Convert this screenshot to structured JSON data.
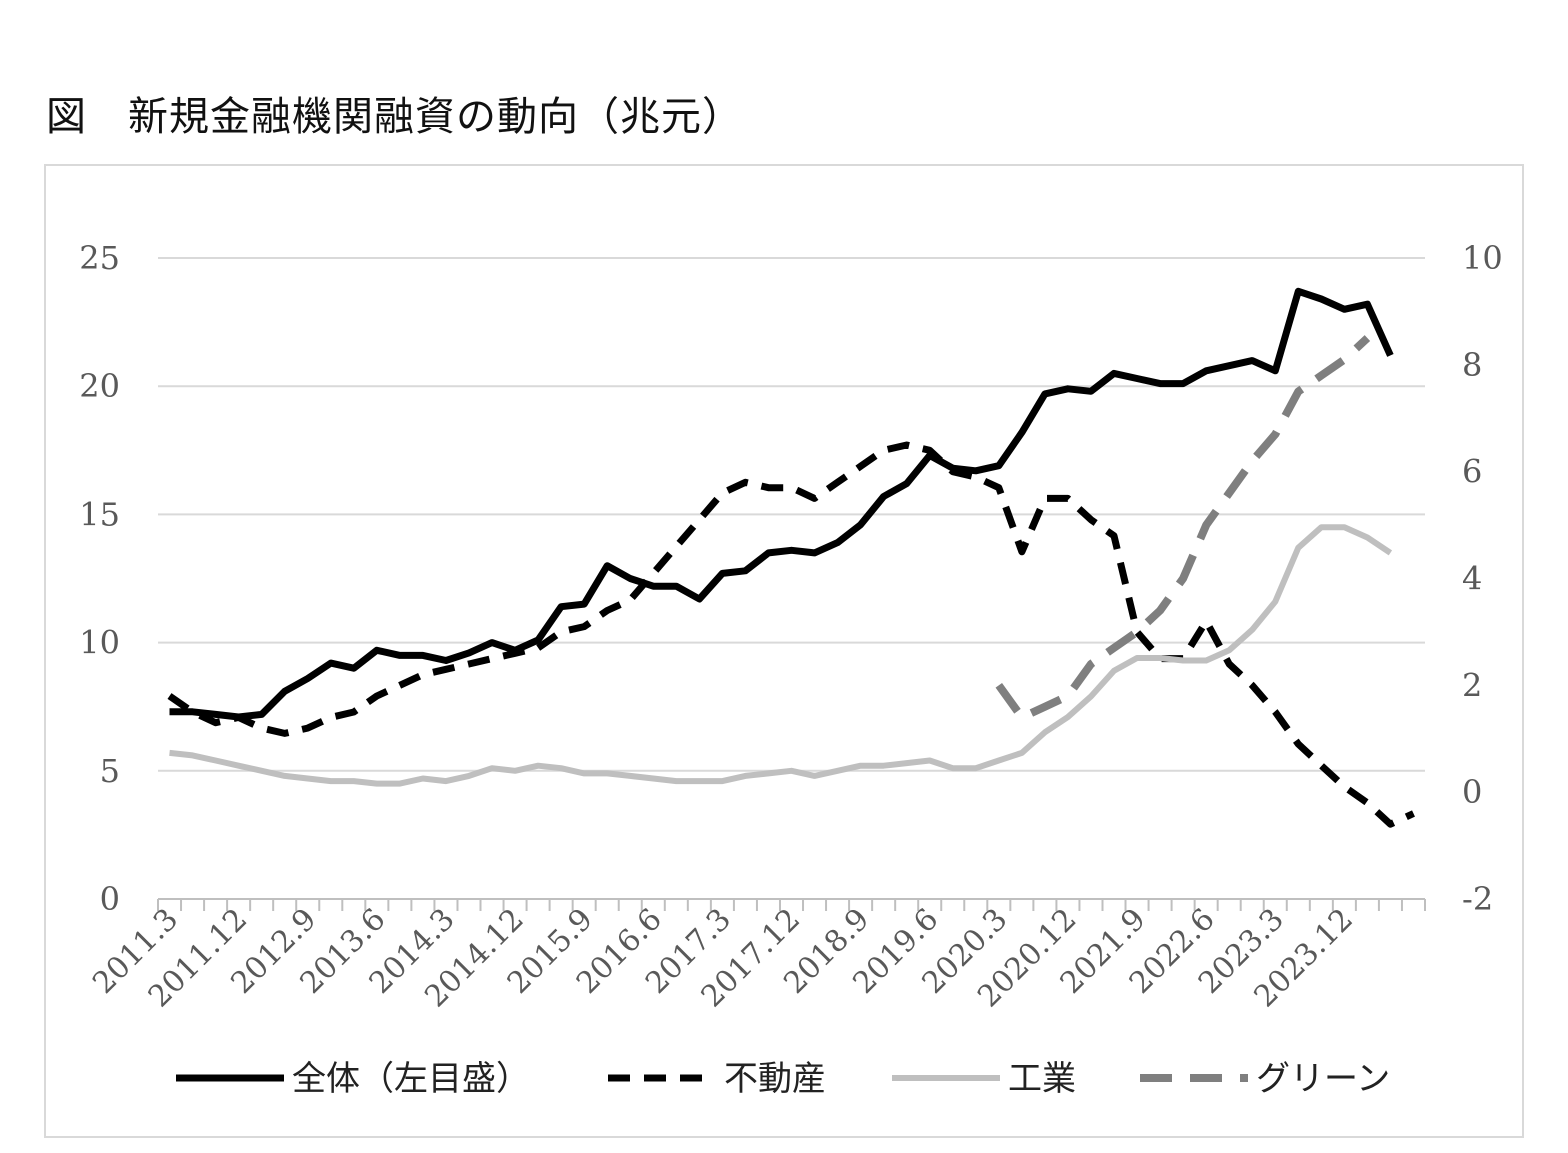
{
  "title": "図　新規金融機関融資の動向（兆元）",
  "chart_data": {
    "type": "line",
    "title": "図　新規金融機関融資の動向（兆元）",
    "xlabel": "",
    "ylabel": "",
    "y_left": {
      "lim": [
        0,
        25
      ],
      "ticks": [
        "0",
        "5",
        "10",
        "15",
        "20",
        "25"
      ]
    },
    "y_right": {
      "lim": [
        -2,
        10
      ],
      "ticks": [
        "-2",
        "0",
        "2",
        "4",
        "6",
        "8",
        "10"
      ]
    },
    "grid": true,
    "legend_position": "bottom",
    "x_tick_labels": [
      "2011.3",
      "2011.12",
      "2012.9",
      "2013.6",
      "2014.3",
      "2014.12",
      "2015.9",
      "2016.6",
      "2017.3",
      "2017.12",
      "2018.9",
      "2019.6",
      "2020.3",
      "2020.12",
      "2021.9",
      "2022.6",
      "2023.3",
      "2023.12"
    ],
    "x_count": 55,
    "series": [
      {
        "name": "全体（左目盛）",
        "axis": "left",
        "style": "solid",
        "color": "#000000",
        "values": [
          7.3,
          7.3,
          7.2,
          7.1,
          7.2,
          8.1,
          8.6,
          9.2,
          9.0,
          9.7,
          9.5,
          9.5,
          9.3,
          9.6,
          10.0,
          9.7,
          10.1,
          11.4,
          11.5,
          13.0,
          12.5,
          12.2,
          12.2,
          11.7,
          12.7,
          12.8,
          13.5,
          13.6,
          13.5,
          13.9,
          14.6,
          15.7,
          16.2,
          17.3,
          16.8,
          16.7,
          16.9,
          18.2,
          19.7,
          19.9,
          19.8,
          20.5,
          20.3,
          20.1,
          20.1,
          20.6,
          20.8,
          21.0,
          20.6,
          23.7,
          23.4,
          23.0,
          23.2,
          21.2,
          null
        ]
      },
      {
        "name": "不動産",
        "axis": "right",
        "style": "dash",
        "color": "#000000",
        "values": [
          1.8,
          1.5,
          1.3,
          1.4,
          1.2,
          1.1,
          1.2,
          1.4,
          1.5,
          1.8,
          2.0,
          2.2,
          2.3,
          2.4,
          2.5,
          2.6,
          2.7,
          3.0,
          3.1,
          3.4,
          3.6,
          4.1,
          4.6,
          5.1,
          5.6,
          5.8,
          5.7,
          5.7,
          5.5,
          5.8,
          6.1,
          6.4,
          6.5,
          6.4,
          6.0,
          5.9,
          5.7,
          4.5,
          5.5,
          5.5,
          5.1,
          4.8,
          3.0,
          2.5,
          2.5,
          3.2,
          2.4,
          2.0,
          1.5,
          0.9,
          0.5,
          0.1,
          -0.2,
          -0.6,
          -0.4
        ]
      },
      {
        "name": "工業",
        "axis": "left",
        "style": "solid",
        "color": "#bfbfbf",
        "values": [
          5.7,
          5.6,
          5.4,
          5.2,
          5.0,
          4.8,
          4.7,
          4.6,
          4.6,
          4.5,
          4.5,
          4.7,
          4.6,
          4.8,
          5.1,
          5.0,
          5.2,
          5.1,
          4.9,
          4.9,
          4.8,
          4.7,
          4.6,
          4.6,
          4.6,
          4.8,
          4.9,
          5.0,
          4.8,
          5.0,
          5.2,
          5.2,
          5.3,
          5.4,
          5.1,
          5.1,
          5.4,
          5.7,
          6.5,
          7.1,
          7.9,
          8.9,
          9.4,
          9.4,
          9.3,
          9.3,
          9.7,
          10.5,
          11.6,
          13.7,
          14.5,
          14.5,
          14.1,
          13.5,
          null
        ]
      },
      {
        "name": "グリーン",
        "axis": "right",
        "style": "dash",
        "color": "#7f7f7f",
        "values": [
          null,
          null,
          null,
          null,
          null,
          null,
          null,
          null,
          null,
          null,
          null,
          null,
          null,
          null,
          null,
          null,
          null,
          null,
          null,
          null,
          null,
          null,
          null,
          null,
          null,
          null,
          null,
          null,
          null,
          null,
          null,
          null,
          null,
          null,
          null,
          null,
          2.0,
          1.4,
          1.6,
          1.8,
          2.4,
          2.7,
          3.0,
          3.4,
          4.0,
          5.0,
          5.6,
          6.2,
          6.7,
          7.5,
          7.8,
          8.1,
          8.5,
          null,
          null
        ]
      }
    ]
  }
}
